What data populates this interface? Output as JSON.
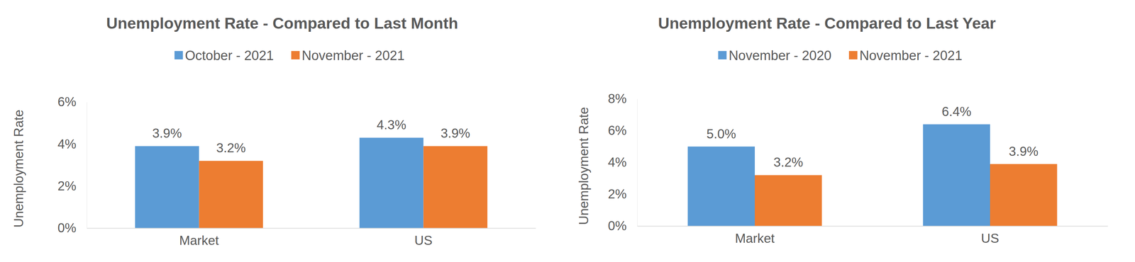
{
  "chart_data": [
    {
      "type": "bar",
      "title": "Unemployment Rate - Compared to Last Month",
      "y_label": "Unemployment Rate",
      "categories": [
        "Market",
        "US"
      ],
      "series": [
        {
          "name": "October - 2021",
          "color": "#5b9bd5",
          "values": [
            3.9,
            4.3
          ],
          "value_labels": [
            "3.9%",
            "4.3%"
          ]
        },
        {
          "name": "November - 2021",
          "color": "#ed7d31",
          "values": [
            3.2,
            3.9
          ],
          "value_labels": [
            "3.2%",
            "3.9%"
          ]
        }
      ],
      "ylim": [
        0,
        6
      ],
      "yticks": [
        {
          "value": 0,
          "label": "0%"
        },
        {
          "value": 2,
          "label": "2%"
        },
        {
          "value": 4,
          "label": "4%"
        },
        {
          "value": 6,
          "label": "6%"
        }
      ],
      "grid": false,
      "legend": "top",
      "data_labels": true
    },
    {
      "type": "bar",
      "title": "Unemployment Rate - Compared to Last Year",
      "y_label": "Unemployment Rate",
      "categories": [
        "Market",
        "US"
      ],
      "series": [
        {
          "name": "November - 2020",
          "color": "#5b9bd5",
          "values": [
            5.0,
            6.4
          ],
          "value_labels": [
            "5.0%",
            "6.4%"
          ]
        },
        {
          "name": "November - 2021",
          "color": "#ed7d31",
          "values": [
            3.2,
            3.9
          ],
          "value_labels": [
            "3.2%",
            "3.9%"
          ]
        }
      ],
      "ylim": [
        0,
        8
      ],
      "yticks": [
        {
          "value": 0,
          "label": "0%"
        },
        {
          "value": 2,
          "label": "2%"
        },
        {
          "value": 4,
          "label": "4%"
        },
        {
          "value": 6,
          "label": "6%"
        },
        {
          "value": 8,
          "label": "8%"
        }
      ],
      "grid": false,
      "legend": "top",
      "data_labels": true
    }
  ]
}
